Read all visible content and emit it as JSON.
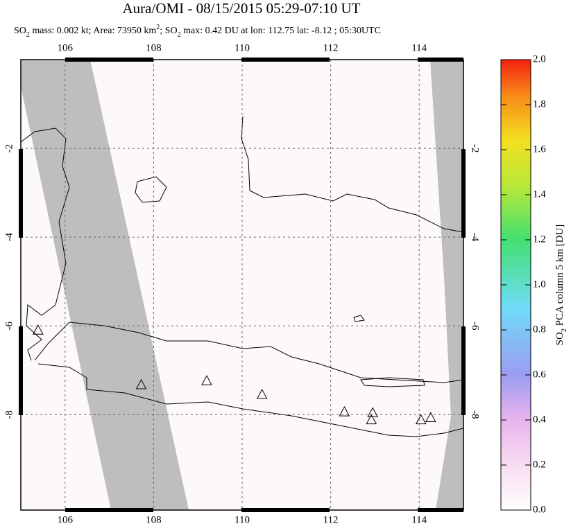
{
  "header": {
    "title": "Aura/OMI - 08/15/2015 05:29-07:10 UT",
    "subtitle": [
      "SO",
      "2",
      " mass: 0.002 kt; Area: 73950 km",
      "2",
      "; SO",
      "2",
      " max: 0.42 DU at lon: 112.75 lat: -8.12 ; 05:30UTC"
    ]
  },
  "map": {
    "lon_range": [
      105,
      115
    ],
    "lat_range": [
      -10.15,
      0
    ],
    "lon_ticks": [
      106,
      108,
      110,
      112,
      114
    ],
    "lat_ticks": [
      -2,
      -4,
      -6,
      -8
    ],
    "volcanoes": [
      {
        "lon": 105.39,
        "lat": -6.11
      },
      {
        "lon": 107.72,
        "lat": -7.34
      },
      {
        "lon": 109.2,
        "lat": -7.25
      },
      {
        "lon": 110.45,
        "lat": -7.56
      },
      {
        "lon": 112.31,
        "lat": -7.95
      },
      {
        "lon": 112.95,
        "lat": -7.97
      },
      {
        "lon": 112.92,
        "lat": -8.13
      },
      {
        "lon": 114.04,
        "lat": -8.13
      },
      {
        "lon": 114.26,
        "lat": -8.08
      }
    ]
  },
  "colorbar": {
    "label": [
      "SO",
      "2",
      " PCA column 5 km [DU]"
    ],
    "range": [
      0,
      2
    ],
    "ticks": [
      {
        "value": 0,
        "label": "0.0"
      },
      0.2,
      0.4,
      0.6,
      0.8,
      {
        "value": 1,
        "label": "1.0"
      },
      1.2,
      1.4,
      1.6,
      1.8,
      {
        "value": 2,
        "label": "2.0"
      }
    ]
  }
}
